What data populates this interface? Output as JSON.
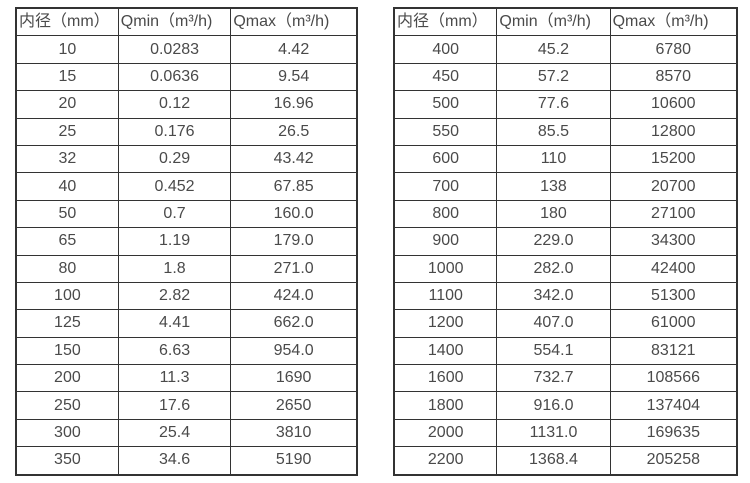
{
  "page": {
    "background_color": "#ffffff",
    "text_color": "#4a4a4a",
    "border_color": "#333333"
  },
  "tables": [
    {
      "name": "flow-rate-table-small-diameters",
      "headers": [
        "内径（mm）",
        "Qmin（m³/h)",
        "Qmax（m³/h)"
      ],
      "rows": [
        [
          "10",
          "0.0283",
          "4.42"
        ],
        [
          "15",
          "0.0636",
          "9.54"
        ],
        [
          "20",
          "0.12",
          "16.96"
        ],
        [
          "25",
          "0.176",
          "26.5"
        ],
        [
          "32",
          "0.29",
          "43.42"
        ],
        [
          "40",
          "0.452",
          "67.85"
        ],
        [
          "50",
          "0.7",
          "160.0"
        ],
        [
          "65",
          "1.19",
          "179.0"
        ],
        [
          "80",
          "1.8",
          "271.0"
        ],
        [
          "100",
          "2.82",
          "424.0"
        ],
        [
          "125",
          "4.41",
          "662.0"
        ],
        [
          "150",
          "6.63",
          "954.0"
        ],
        [
          "200",
          "11.3",
          "1690"
        ],
        [
          "250",
          "17.6",
          "2650"
        ],
        [
          "300",
          "25.4",
          "3810"
        ],
        [
          "350",
          "34.6",
          "5190"
        ]
      ]
    },
    {
      "name": "flow-rate-table-large-diameters",
      "headers": [
        "内径（mm）",
        "Qmin（m³/h)",
        "Qmax（m³/h)"
      ],
      "rows": [
        [
          "400",
          "45.2",
          "6780"
        ],
        [
          "450",
          "57.2",
          "8570"
        ],
        [
          "500",
          "77.6",
          "10600"
        ],
        [
          "550",
          "85.5",
          "12800"
        ],
        [
          "600",
          "110",
          "15200"
        ],
        [
          "700",
          "138",
          "20700"
        ],
        [
          "800",
          "180",
          "27100"
        ],
        [
          "900",
          "229.0",
          "34300"
        ],
        [
          "1000",
          "282.0",
          "42400"
        ],
        [
          "1100",
          "342.0",
          "51300"
        ],
        [
          "1200",
          "407.0",
          "61000"
        ],
        [
          "1400",
          "554.1",
          "83121"
        ],
        [
          "1600",
          "732.7",
          "108566"
        ],
        [
          "1800",
          "916.0",
          "137404"
        ],
        [
          "2000",
          "1131.0",
          "169635"
        ],
        [
          "2200",
          "1368.4",
          "205258"
        ]
      ]
    }
  ]
}
